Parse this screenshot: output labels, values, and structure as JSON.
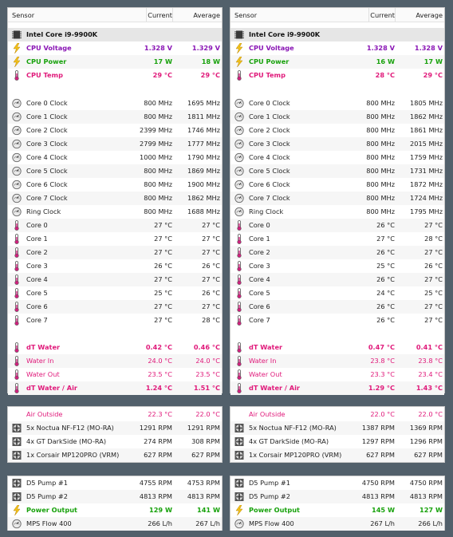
{
  "columns": {
    "sensor": "Sensor",
    "current": "Current",
    "average": "Average"
  },
  "colors": {
    "purple": "#8a16b5",
    "green": "#17a10b",
    "pink": "#e0197a",
    "background": "#52606b"
  },
  "panels": [
    {
      "cpu": {
        "name": "Intel Core i9-9900K",
        "rows": [
          {
            "label": "CPU Voltage",
            "current": "1.328 V",
            "average": "1.329 V"
          },
          {
            "label": "CPU Power",
            "current": "17 W",
            "average": "18 W"
          },
          {
            "label": "CPU Temp",
            "current": "29 °C",
            "average": "29 °C"
          }
        ]
      },
      "clocks": [
        {
          "label": "Core 0 Clock",
          "current": "800 MHz",
          "average": "1695 MHz"
        },
        {
          "label": "Core 1 Clock",
          "current": "800 MHz",
          "average": "1811 MHz"
        },
        {
          "label": "Core 2 Clock",
          "current": "2399 MHz",
          "average": "1746 MHz"
        },
        {
          "label": "Core 3 Clock",
          "current": "2799 MHz",
          "average": "1777 MHz"
        },
        {
          "label": "Core 4 Clock",
          "current": "1000 MHz",
          "average": "1790 MHz"
        },
        {
          "label": "Core 5 Clock",
          "current": "800 MHz",
          "average": "1869 MHz"
        },
        {
          "label": "Core 6 Clock",
          "current": "800 MHz",
          "average": "1900 MHz"
        },
        {
          "label": "Core 7 Clock",
          "current": "800 MHz",
          "average": "1862 MHz"
        },
        {
          "label": "Ring Clock",
          "current": "800 MHz",
          "average": "1688 MHz"
        }
      ],
      "temps": [
        {
          "label": "Core 0",
          "current": "27 °C",
          "average": "27 °C"
        },
        {
          "label": "Core 1",
          "current": "27 °C",
          "average": "27 °C"
        },
        {
          "label": "Core 2",
          "current": "27 °C",
          "average": "27 °C"
        },
        {
          "label": "Core 3",
          "current": "26 °C",
          "average": "26 °C"
        },
        {
          "label": "Core 4",
          "current": "27 °C",
          "average": "27 °C"
        },
        {
          "label": "Core 5",
          "current": "25 °C",
          "average": "26 °C"
        },
        {
          "label": "Core 6",
          "current": "27 °C",
          "average": "27 °C"
        },
        {
          "label": "Core 7",
          "current": "27 °C",
          "average": "28 °C"
        }
      ],
      "water": [
        {
          "label": "dT Water",
          "current": "0.42 °C",
          "average": "0.46 °C"
        },
        {
          "label": "Water In",
          "current": "24.0 °C",
          "average": "24.0 °C"
        },
        {
          "label": "Water Out",
          "current": "23.5 °C",
          "average": "23.5 °C"
        },
        {
          "label": "dT Water / Air",
          "current": "1.24 °C",
          "average": "1.51 °C"
        }
      ],
      "fans": [
        {
          "label": "Air Outside",
          "current": "22.3 °C",
          "average": "22.0 °C"
        },
        {
          "label": "5x Noctua NF-F12 (MO-RA)",
          "current": "1291 RPM",
          "average": "1291 RPM"
        },
        {
          "label": "4x GT DarkSide (MO-RA)",
          "current": "274 RPM",
          "average": "308 RPM"
        },
        {
          "label": "1x Corsair MP120PRO (VRM)",
          "current": "627 RPM",
          "average": "627 RPM"
        }
      ],
      "pumps": [
        {
          "label": "D5 Pump #1",
          "current": "4755 RPM",
          "average": "4753 RPM"
        },
        {
          "label": "D5 Pump #2",
          "current": "4813 RPM",
          "average": "4813 RPM"
        },
        {
          "label": "Power Output",
          "current": "129 W",
          "average": "141 W"
        },
        {
          "label": "MPS Flow 400",
          "current": "266 L/h",
          "average": "267 L/h"
        }
      ]
    },
    {
      "cpu": {
        "name": "Intel Core i9-9900K",
        "rows": [
          {
            "label": "CPU Voltage",
            "current": "1.328 V",
            "average": "1.328 V"
          },
          {
            "label": "CPU Power",
            "current": "16 W",
            "average": "17 W"
          },
          {
            "label": "CPU Temp",
            "current": "28 °C",
            "average": "29 °C"
          }
        ]
      },
      "clocks": [
        {
          "label": "Core 0 Clock",
          "current": "800 MHz",
          "average": "1805 MHz"
        },
        {
          "label": "Core 1 Clock",
          "current": "800 MHz",
          "average": "1862 MHz"
        },
        {
          "label": "Core 2 Clock",
          "current": "800 MHz",
          "average": "1861 MHz"
        },
        {
          "label": "Core 3 Clock",
          "current": "800 MHz",
          "average": "2015 MHz"
        },
        {
          "label": "Core 4 Clock",
          "current": "800 MHz",
          "average": "1759 MHz"
        },
        {
          "label": "Core 5 Clock",
          "current": "800 MHz",
          "average": "1731 MHz"
        },
        {
          "label": "Core 6 Clock",
          "current": "800 MHz",
          "average": "1872 MHz"
        },
        {
          "label": "Core 7 Clock",
          "current": "800 MHz",
          "average": "1724 MHz"
        },
        {
          "label": "Ring Clock",
          "current": "800 MHz",
          "average": "1795 MHz"
        }
      ],
      "temps": [
        {
          "label": "Core 0",
          "current": "26 °C",
          "average": "27 °C"
        },
        {
          "label": "Core 1",
          "current": "27 °C",
          "average": "28 °C"
        },
        {
          "label": "Core 2",
          "current": "26 °C",
          "average": "27 °C"
        },
        {
          "label": "Core 3",
          "current": "25 °C",
          "average": "26 °C"
        },
        {
          "label": "Core 4",
          "current": "26 °C",
          "average": "27 °C"
        },
        {
          "label": "Core 5",
          "current": "24 °C",
          "average": "25 °C"
        },
        {
          "label": "Core 6",
          "current": "26 °C",
          "average": "27 °C"
        },
        {
          "label": "Core 7",
          "current": "26 °C",
          "average": "27 °C"
        }
      ],
      "water": [
        {
          "label": "dT Water",
          "current": "0.47 °C",
          "average": "0.41 °C"
        },
        {
          "label": "Water In",
          "current": "23.8 °C",
          "average": "23.8 °C"
        },
        {
          "label": "Water Out",
          "current": "23.3 °C",
          "average": "23.4 °C"
        },
        {
          "label": "dT Water / Air",
          "current": "1.29 °C",
          "average": "1.43 °C"
        }
      ],
      "fans": [
        {
          "label": "Air Outside",
          "current": "22.0 °C",
          "average": "22.0 °C"
        },
        {
          "label": "5x Noctua NF-F12 (MO-RA)",
          "current": "1387 RPM",
          "average": "1369 RPM"
        },
        {
          "label": "4x GT DarkSide (MO-RA)",
          "current": "1297 RPM",
          "average": "1296 RPM"
        },
        {
          "label": "1x Corsair MP120PRO (VRM)",
          "current": "627 RPM",
          "average": "627 RPM"
        }
      ],
      "pumps": [
        {
          "label": "D5 Pump #1",
          "current": "4750 RPM",
          "average": "4750 RPM"
        },
        {
          "label": "D5 Pump #2",
          "current": "4813 RPM",
          "average": "4813 RPM"
        },
        {
          "label": "Power Output",
          "current": "145 W",
          "average": "127 W"
        },
        {
          "label": "MPS Flow 400",
          "current": "267 L/h",
          "average": "266 L/h"
        }
      ]
    }
  ]
}
